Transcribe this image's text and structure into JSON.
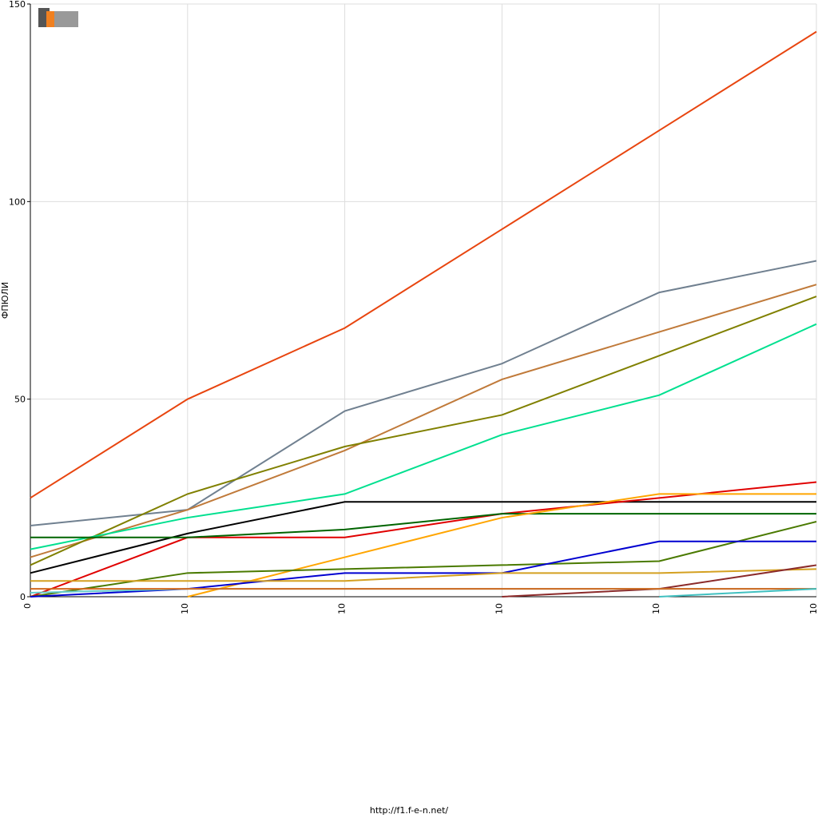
{
  "chart_data": {
    "type": "line",
    "y_label": "ФПЮЛИ",
    "footer": "http://f1.f-e-n.net/",
    "categories": [
      "0",
      "10",
      "10",
      "10",
      "10",
      "10"
    ],
    "ylim": [
      0,
      150
    ],
    "yticks": [
      0,
      50,
      100,
      150
    ],
    "grid": true,
    "series": [
      {
        "color": "#e8450f",
        "values": [
          25,
          50,
          68,
          93,
          118,
          143
        ]
      },
      {
        "color": "#708090",
        "values": [
          18,
          22,
          47,
          59,
          77,
          85
        ]
      },
      {
        "color": "#c07a3a",
        "values": [
          10,
          22,
          37,
          55,
          67,
          79
        ]
      },
      {
        "color": "#808000",
        "values": [
          8,
          26,
          38,
          46,
          61,
          76
        ]
      },
      {
        "color": "#00e08f",
        "values": [
          12,
          20,
          26,
          41,
          51,
          69
        ]
      },
      {
        "color": "#000000",
        "values": [
          6,
          16,
          24,
          24,
          24,
          24
        ]
      },
      {
        "color": "#e00000",
        "values": [
          0,
          15,
          15,
          21,
          25,
          29
        ]
      },
      {
        "color": "#006400",
        "values": [
          15,
          15,
          17,
          21,
          21,
          21
        ]
      },
      {
        "color": "#ffa500",
        "values": [
          null,
          0,
          10,
          20,
          26,
          26
        ]
      },
      {
        "color": "#4a7a00",
        "values": [
          0,
          6,
          7,
          8,
          9,
          19
        ]
      },
      {
        "color": "#0000d0",
        "values": [
          0,
          2,
          6,
          6,
          14,
          14
        ]
      },
      {
        "color": "#d4a020",
        "values": [
          4,
          4,
          4,
          6,
          6,
          7
        ]
      },
      {
        "color": "#8b2a2a",
        "values": [
          null,
          null,
          null,
          0,
          2,
          8
        ]
      },
      {
        "color": "#66cccc",
        "values": [
          1,
          2,
          2,
          2,
          2,
          2
        ]
      },
      {
        "color": "#d2691e",
        "values": [
          2,
          2,
          2,
          2,
          2,
          2
        ]
      },
      {
        "color": "#40c0c0",
        "values": [
          null,
          null,
          null,
          null,
          0,
          2
        ]
      }
    ]
  }
}
